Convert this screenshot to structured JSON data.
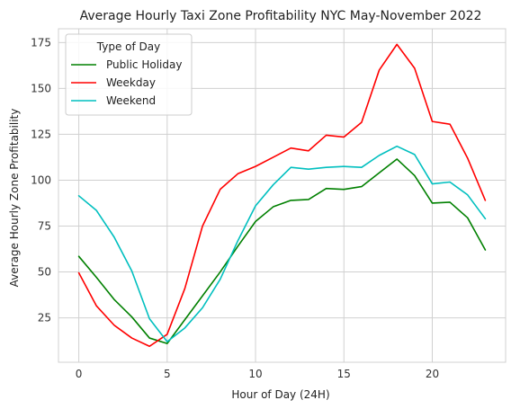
{
  "chart_data": {
    "type": "line",
    "title": "Average Hourly Taxi Zone Profitability NYC May-November 2022",
    "xlabel": "Hour of Day (24H)",
    "ylabel": "Average Hourly Zone Profitability",
    "x": [
      0,
      1,
      2,
      3,
      4,
      5,
      6,
      7,
      8,
      9,
      10,
      11,
      12,
      13,
      14,
      15,
      16,
      17,
      18,
      19,
      20,
      21,
      22,
      23
    ],
    "xlim": [
      -1.15,
      24.15
    ],
    "ylim": [
      0.8,
      182.5
    ],
    "xticks": [
      0,
      5,
      10,
      15,
      20
    ],
    "yticks": [
      25,
      50,
      75,
      100,
      125,
      150,
      175
    ],
    "grid": true,
    "legend": {
      "title": "Type of Day",
      "position": "top-left"
    },
    "series": [
      {
        "name": "Public Holiday",
        "color": "#008000",
        "values": [
          58.5,
          47,
          35,
          25.5,
          14,
          11,
          24,
          37,
          50,
          64,
          77.5,
          85.5,
          89,
          89.5,
          95.5,
          95,
          96.5,
          104,
          111.5,
          102.5,
          87.5,
          88,
          79.5,
          62
        ]
      },
      {
        "name": "Weekday",
        "color": "#ff0000",
        "values": [
          49.5,
          31.5,
          21,
          14,
          9.5,
          16,
          41,
          75,
          95,
          103.5,
          107.5,
          112.5,
          117.5,
          116,
          124.5,
          123.5,
          131.5,
          160,
          174,
          161,
          132,
          130.5,
          112,
          89
        ]
      },
      {
        "name": "Weekend",
        "color": "#00bfbf",
        "values": [
          91.5,
          83.5,
          69,
          50.5,
          24.5,
          12,
          19.5,
          30.5,
          46,
          67,
          86,
          97.5,
          107,
          106,
          107,
          107.5,
          107,
          113.5,
          118.5,
          114,
          98,
          99,
          92,
          79
        ]
      }
    ]
  }
}
